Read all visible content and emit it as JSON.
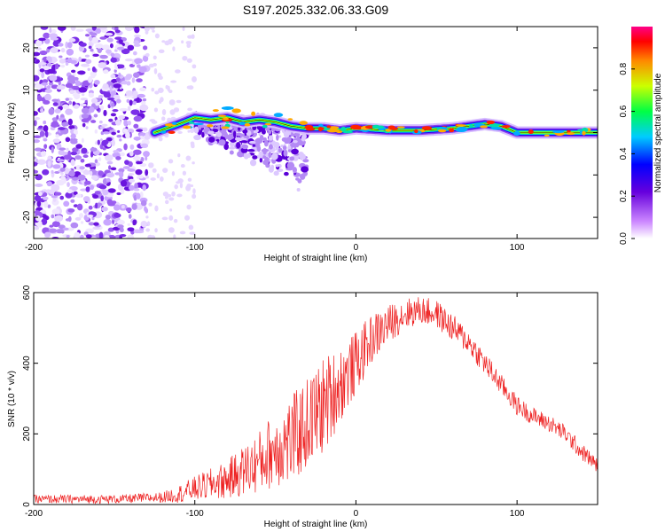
{
  "title": "S197.2025.332.06.33.G09",
  "chart_data": [
    {
      "type": "heatmap",
      "name": "spectrogram",
      "xlabel": "Height of straight line (km)",
      "ylabel": "Frequency (Hz)",
      "xlim": [
        -200,
        150
      ],
      "ylim": [
        -25,
        25
      ],
      "xticks": [
        -200,
        -100,
        0,
        100
      ],
      "yticks": [
        -20,
        -10,
        0,
        10,
        20
      ],
      "colorbar": {
        "label": "Normalized spectral amplitude",
        "range": [
          0.0,
          1.0
        ],
        "ticks": [
          0.0,
          0.2,
          0.4,
          0.6,
          0.8
        ]
      },
      "ridge": [
        {
          "x": -125,
          "f": 0.0
        },
        {
          "x": -110,
          "f": 2.0
        },
        {
          "x": -100,
          "f": 3.5
        },
        {
          "x": -90,
          "f": 3.0
        },
        {
          "x": -80,
          "f": 3.5
        },
        {
          "x": -70,
          "f": 2.5
        },
        {
          "x": -60,
          "f": 3.0
        },
        {
          "x": -50,
          "f": 2.5
        },
        {
          "x": -40,
          "f": 1.5
        },
        {
          "x": -30,
          "f": 1.0
        },
        {
          "x": -20,
          "f": 1.0
        },
        {
          "x": -10,
          "f": 0.5
        },
        {
          "x": 0,
          "f": 1.0
        },
        {
          "x": 20,
          "f": 0.5
        },
        {
          "x": 40,
          "f": 0.5
        },
        {
          "x": 60,
          "f": 1.0
        },
        {
          "x": 80,
          "f": 2.0
        },
        {
          "x": 90,
          "f": 1.5
        },
        {
          "x": 100,
          "f": 0.0
        },
        {
          "x": 120,
          "f": 0.0
        },
        {
          "x": 150,
          "f": 0.0
        }
      ],
      "noise_region": [
        -200,
        -130
      ],
      "scatter_region": [
        -100,
        -30
      ]
    },
    {
      "type": "line",
      "name": "snr",
      "xlabel": "Height of straight line (km)",
      "ylabel": "SNR (10 * v/v)",
      "xlim": [
        -200,
        150
      ],
      "ylim": [
        0,
        600
      ],
      "xticks": [
        -200,
        -100,
        0,
        100
      ],
      "yticks": [
        0,
        200,
        400,
        600
      ],
      "color": "#ee2222",
      "envelope": [
        {
          "x": -200,
          "y": 15,
          "amp": 12
        },
        {
          "x": -150,
          "y": 15,
          "amp": 12
        },
        {
          "x": -120,
          "y": 20,
          "amp": 15
        },
        {
          "x": -110,
          "y": 30,
          "amp": 25
        },
        {
          "x": -100,
          "y": 45,
          "amp": 35
        },
        {
          "x": -80,
          "y": 70,
          "amp": 55
        },
        {
          "x": -60,
          "y": 120,
          "amp": 90
        },
        {
          "x": -50,
          "y": 160,
          "amp": 110
        },
        {
          "x": -40,
          "y": 180,
          "amp": 130
        },
        {
          "x": -30,
          "y": 230,
          "amp": 130
        },
        {
          "x": -20,
          "y": 280,
          "amp": 140
        },
        {
          "x": -10,
          "y": 340,
          "amp": 110
        },
        {
          "x": 0,
          "y": 400,
          "amp": 90
        },
        {
          "x": 10,
          "y": 470,
          "amp": 70
        },
        {
          "x": 20,
          "y": 510,
          "amp": 55
        },
        {
          "x": 30,
          "y": 540,
          "amp": 45
        },
        {
          "x": 40,
          "y": 550,
          "amp": 40
        },
        {
          "x": 50,
          "y": 540,
          "amp": 40
        },
        {
          "x": 60,
          "y": 500,
          "amp": 40
        },
        {
          "x": 70,
          "y": 460,
          "amp": 35
        },
        {
          "x": 80,
          "y": 400,
          "amp": 35
        },
        {
          "x": 90,
          "y": 340,
          "amp": 30
        },
        {
          "x": 100,
          "y": 280,
          "amp": 28
        },
        {
          "x": 110,
          "y": 250,
          "amp": 25
        },
        {
          "x": 120,
          "y": 230,
          "amp": 25
        },
        {
          "x": 130,
          "y": 200,
          "amp": 25
        },
        {
          "x": 140,
          "y": 150,
          "amp": 25
        },
        {
          "x": 150,
          "y": 110,
          "amp": 20
        }
      ]
    }
  ]
}
